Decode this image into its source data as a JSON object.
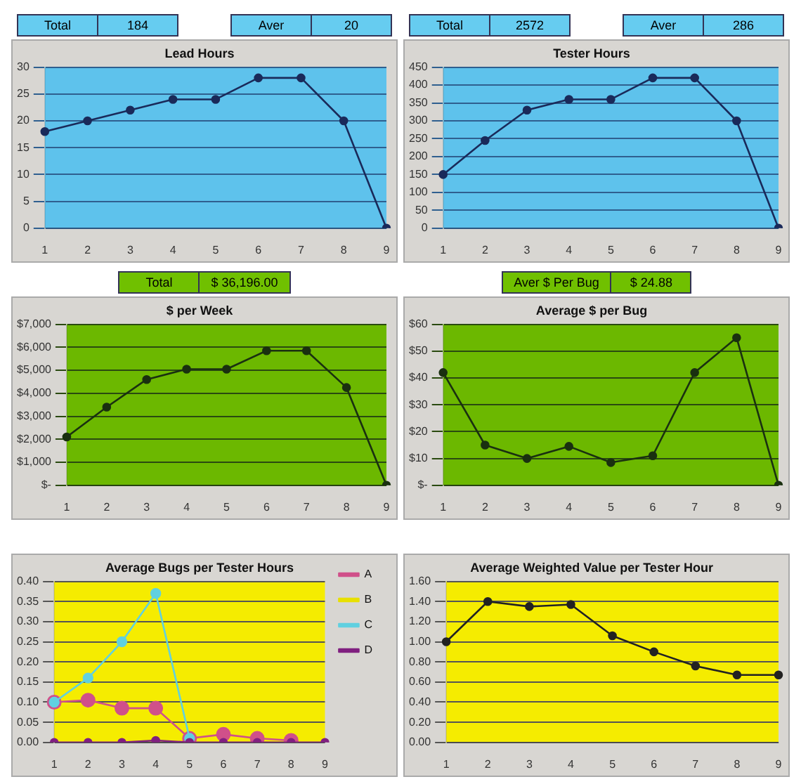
{
  "chart_data": [
    {
      "type": "line",
      "title": "Lead Hours",
      "annotations": [
        "Total",
        "184",
        "Aver",
        "20"
      ],
      "categories": [
        "1",
        "2",
        "3",
        "4",
        "5",
        "6",
        "7",
        "8",
        "9"
      ],
      "values": [
        18,
        20,
        22,
        24,
        24,
        28,
        28,
        20,
        0
      ],
      "color": "#1a2a5a",
      "ylim": [
        0,
        30
      ],
      "yticks": [
        0,
        5,
        10,
        15,
        20,
        25,
        30
      ],
      "grid": "y",
      "marker": "circle",
      "legend": false
    },
    {
      "type": "line",
      "title": "Tester Hours",
      "annotations": [
        "Total",
        "2572",
        "Aver",
        "286"
      ],
      "categories": [
        "1",
        "2",
        "3",
        "4",
        "5",
        "6",
        "7",
        "8",
        "9"
      ],
      "values": [
        150,
        245,
        330,
        360,
        360,
        420,
        420,
        300,
        0
      ],
      "color": "#1a2a5a",
      "ylim": [
        0,
        450
      ],
      "yticks": [
        0,
        50,
        100,
        150,
        200,
        250,
        300,
        350,
        400,
        450
      ],
      "grid": "y",
      "marker": "circle",
      "legend": false
    },
    {
      "type": "line",
      "title": "$ per Week",
      "annotations": [
        "Total",
        "$ 36,196.00"
      ],
      "categories": [
        "1",
        "2",
        "3",
        "4",
        "5",
        "6",
        "7",
        "8",
        "9"
      ],
      "values": [
        2100,
        3400,
        4600,
        5050,
        5050,
        5850,
        5850,
        4250,
        0
      ],
      "color": "#1a3010",
      "ylim": [
        0,
        7000
      ],
      "yticks": [
        {
          "value": 0,
          "label": "$-"
        },
        {
          "value": 1000,
          "label": "$1,000"
        },
        {
          "value": 2000,
          "label": "$2,000"
        },
        {
          "value": 3000,
          "label": "$3,000"
        },
        {
          "value": 4000,
          "label": "$4,000"
        },
        {
          "value": 5000,
          "label": "$5,000"
        },
        {
          "value": 6000,
          "label": "$6,000"
        },
        {
          "value": 7000,
          "label": "$7,000"
        }
      ],
      "grid": "y",
      "marker": "circle",
      "legend": false
    },
    {
      "type": "line",
      "title": "Average $ per Bug",
      "annotations": [
        "Aver $ Per Bug",
        "$ 24.88"
      ],
      "categories": [
        "1",
        "2",
        "3",
        "4",
        "5",
        "6",
        "7",
        "8",
        "9"
      ],
      "values": [
        42,
        15,
        10,
        14.5,
        8.5,
        11,
        42,
        55,
        0
      ],
      "color": "#1a3010",
      "ylim": [
        0,
        60
      ],
      "yticks": [
        {
          "value": 0,
          "label": "$-"
        },
        {
          "value": 10,
          "label": "$10"
        },
        {
          "value": 20,
          "label": "$20"
        },
        {
          "value": 30,
          "label": "$30"
        },
        {
          "value": 40,
          "label": "$40"
        },
        {
          "value": 50,
          "label": "$50"
        },
        {
          "value": 60,
          "label": "$60"
        }
      ],
      "grid": "y",
      "marker": "circle",
      "legend": false
    },
    {
      "type": "line",
      "title": "Average Bugs per Tester Hours",
      "categories": [
        "1",
        "2",
        "3",
        "4",
        "5",
        "6",
        "7",
        "8",
        "9"
      ],
      "series": [
        {
          "name": "A",
          "color": "#d0508a",
          "values": [
            0.1,
            0.105,
            0.085,
            0.085,
            0.01,
            0.02,
            0.01,
            0.005,
            null
          ]
        },
        {
          "name": "B",
          "color": "#e8e000",
          "values": [
            null,
            null,
            null,
            null,
            null,
            null,
            null,
            null,
            null
          ]
        },
        {
          "name": "C",
          "color": "#60d0e0",
          "values": [
            0.1,
            0.16,
            0.25,
            0.37,
            0.01,
            null,
            null,
            null,
            null
          ]
        },
        {
          "name": "D",
          "color": "#802080",
          "values": [
            0,
            0,
            0,
            0.005,
            0,
            0,
            0,
            0,
            0
          ]
        }
      ],
      "ylim": [
        0,
        0.4
      ],
      "yticks": [
        {
          "value": 0,
          "label": "0.00"
        },
        {
          "value": 0.05,
          "label": "0.05"
        },
        {
          "value": 0.1,
          "label": "0.10"
        },
        {
          "value": 0.15,
          "label": "0.15"
        },
        {
          "value": 0.2,
          "label": "0.20"
        },
        {
          "value": 0.25,
          "label": "0.25"
        },
        {
          "value": 0.3,
          "label": "0.30"
        },
        {
          "value": 0.35,
          "label": "0.35"
        },
        {
          "value": 0.4,
          "label": "0.40"
        }
      ],
      "grid": "y",
      "marker": "circle",
      "legend": "top right"
    },
    {
      "type": "line",
      "title": "Average Weighted Value per Tester Hour",
      "categories": [
        "1",
        "2",
        "3",
        "4",
        "5",
        "6",
        "7",
        "8",
        "9"
      ],
      "values": [
        1.0,
        1.4,
        1.35,
        1.37,
        1.06,
        0.9,
        0.76,
        0.67,
        0.67
      ],
      "color": "#222222",
      "ylim": [
        0,
        1.6
      ],
      "yticks": [
        {
          "value": 0,
          "label": "0.00"
        },
        {
          "value": 0.2,
          "label": "0.20"
        },
        {
          "value": 0.4,
          "label": "0.40"
        },
        {
          "value": 0.6,
          "label": "0.60"
        },
        {
          "value": 0.8,
          "label": "0.80"
        },
        {
          "value": 1.0,
          "label": "1.00"
        },
        {
          "value": 1.2,
          "label": "1.20"
        },
        {
          "value": 1.4,
          "label": "1.40"
        },
        {
          "value": 1.6,
          "label": "1.60"
        }
      ],
      "grid": "y",
      "marker": "circle",
      "legend": false
    }
  ]
}
